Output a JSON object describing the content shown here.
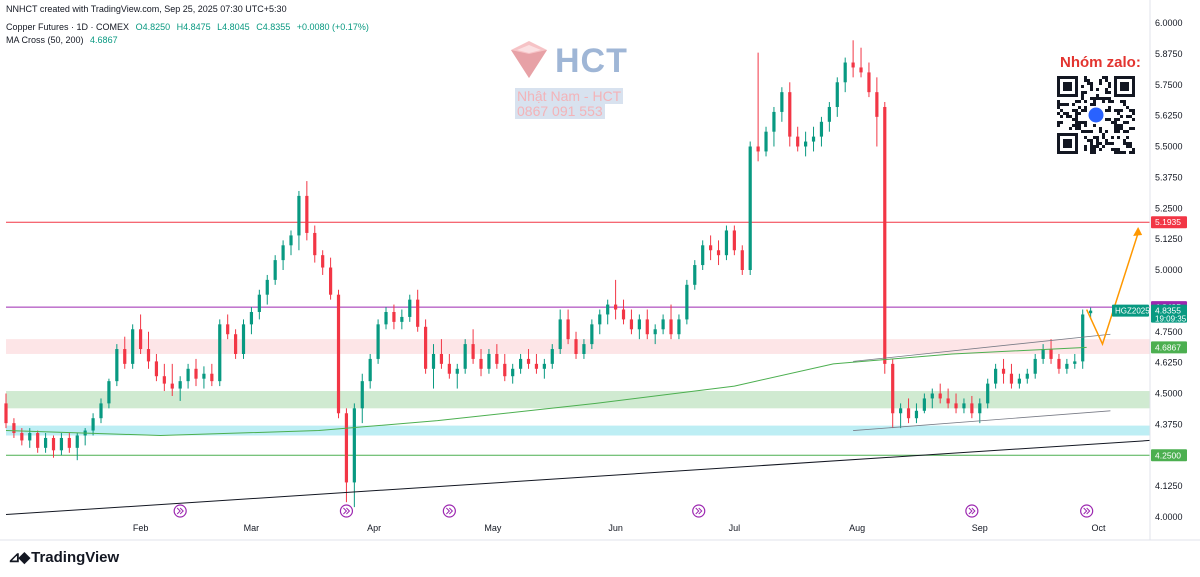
{
  "header": {
    "created_line": "NNHCT created with TradingView.com, Sep 25, 2025 07:30 UTC+5:30",
    "symbol": "Copper Futures · 1D · COMEX",
    "open": "O4.8250",
    "high": "H4.8475",
    "low": "L4.8045",
    "close": "C4.8355",
    "change": "+0.0080 (+0.17%)",
    "indicator_name": "MA Cross (50, 200)",
    "indicator_value": "4.6867"
  },
  "watermark": {
    "brand": "HCT",
    "name": "Nhật Nam - HCT",
    "phone": "0867 091 553",
    "zalo_label": "Nhóm zalo:"
  },
  "footer": {
    "brand": "TradingView"
  },
  "colors": {
    "up": "#089981",
    "down": "#f23645",
    "ma50": "#2962ff",
    "ma200": "#4caf50",
    "resistance": "#f23645",
    "purple": "#9c27b0",
    "green_zone": "#c8e6c9",
    "pink_zone": "#fde0e3",
    "cyan_zone": "#b2ebf2",
    "projection": "#ff9800"
  },
  "chart_data": {
    "type": "candlestick",
    "symbol": "HGZ2025",
    "ylim": [
      4.0,
      6.0
    ],
    "y_ticks": [
      "6.0000",
      "5.8750",
      "5.7500",
      "5.6250",
      "5.5000",
      "5.3750",
      "5.2500",
      "5.1250",
      "5.0000",
      "4.7500",
      "4.6250",
      "4.5000",
      "4.3750",
      "4.1250",
      "4.0000"
    ],
    "x_ticks": [
      {
        "label": "Feb",
        "day": 35
      },
      {
        "label": "Mar",
        "day": 63
      },
      {
        "label": "Apr",
        "day": 94
      },
      {
        "label": "May",
        "day": 124
      },
      {
        "label": "Jun",
        "day": 155
      },
      {
        "label": "Jul",
        "day": 185
      },
      {
        "label": "Aug",
        "day": 216
      },
      {
        "label": "Sep",
        "day": 247
      },
      {
        "label": "Oct",
        "day": 277
      }
    ],
    "price_labels": [
      {
        "text": "5.1935",
        "value": 5.1935,
        "color": "#f23645"
      },
      {
        "text": "4.8495",
        "value": 4.8495,
        "color": "#9c27b0"
      },
      {
        "text": "4.8355",
        "value": 4.8355,
        "color": "#089981",
        "sub": "19:09:35",
        "tag": "HGZ2025"
      },
      {
        "text": "4.6867",
        "value": 4.6867,
        "color": "#4caf50"
      },
      {
        "text": "4.2500",
        "value": 4.25,
        "color": "#4caf50"
      }
    ],
    "hlines": [
      {
        "value": 5.1935,
        "color": "#f23645"
      },
      {
        "value": 4.8495,
        "color": "#9c27b0"
      },
      {
        "value": 4.25,
        "color": "#4caf50"
      }
    ],
    "zones": [
      {
        "from": 4.44,
        "to": 4.51,
        "color": "#c8e6c9"
      },
      {
        "from": 4.66,
        "to": 4.72,
        "color": "#fde0e3"
      },
      {
        "from": 4.33,
        "to": 4.37,
        "color": "#b2ebf2"
      }
    ],
    "trendline": {
      "start": {
        "day": 1,
        "value": 4.01
      },
      "end": {
        "day": 290,
        "value": 4.31
      }
    },
    "channel_upper": {
      "start": {
        "day": 215,
        "value": 4.63
      },
      "end": {
        "day": 280,
        "value": 4.74
      }
    },
    "channel_lower": {
      "start": {
        "day": 215,
        "value": 4.35
      },
      "end": {
        "day": 280,
        "value": 4.43
      }
    },
    "projection": [
      {
        "day": 274,
        "value": 4.84
      },
      {
        "day": 278,
        "value": 4.7
      },
      {
        "day": 287,
        "value": 5.15
      }
    ],
    "ma200": [
      {
        "day": 1,
        "value": 4.35
      },
      {
        "day": 40,
        "value": 4.33
      },
      {
        "day": 80,
        "value": 4.35
      },
      {
        "day": 110,
        "value": 4.39
      },
      {
        "day": 150,
        "value": 4.46
      },
      {
        "day": 185,
        "value": 4.53
      },
      {
        "day": 210,
        "value": 4.62
      },
      {
        "day": 240,
        "value": 4.66
      },
      {
        "day": 274,
        "value": 4.6867
      }
    ],
    "events_days": [
      45,
      87,
      113,
      176,
      245,
      274
    ],
    "candles": [
      {
        "day": 1,
        "o": 4.46,
        "h": 4.5,
        "l": 4.36,
        "c": 4.38
      },
      {
        "day": 3,
        "o": 4.38,
        "h": 4.4,
        "l": 4.32,
        "c": 4.34
      },
      {
        "day": 5,
        "o": 4.34,
        "h": 4.36,
        "l": 4.29,
        "c": 4.31
      },
      {
        "day": 7,
        "o": 4.31,
        "h": 4.36,
        "l": 4.28,
        "c": 4.34
      },
      {
        "day": 9,
        "o": 4.34,
        "h": 4.35,
        "l": 4.26,
        "c": 4.28
      },
      {
        "day": 11,
        "o": 4.28,
        "h": 4.34,
        "l": 4.26,
        "c": 4.32
      },
      {
        "day": 13,
        "o": 4.32,
        "h": 4.33,
        "l": 4.24,
        "c": 4.27
      },
      {
        "day": 15,
        "o": 4.27,
        "h": 4.34,
        "l": 4.25,
        "c": 4.32
      },
      {
        "day": 17,
        "o": 4.32,
        "h": 4.34,
        "l": 4.26,
        "c": 4.28
      },
      {
        "day": 19,
        "o": 4.28,
        "h": 4.34,
        "l": 4.23,
        "c": 4.33
      },
      {
        "day": 21,
        "o": 4.33,
        "h": 4.36,
        "l": 4.29,
        "c": 4.35
      },
      {
        "day": 23,
        "o": 4.35,
        "h": 4.42,
        "l": 4.33,
        "c": 4.4
      },
      {
        "day": 25,
        "o": 4.4,
        "h": 4.48,
        "l": 4.38,
        "c": 4.46
      },
      {
        "day": 27,
        "o": 4.46,
        "h": 4.56,
        "l": 4.44,
        "c": 4.55
      },
      {
        "day": 29,
        "o": 4.55,
        "h": 4.7,
        "l": 4.53,
        "c": 4.68
      },
      {
        "day": 31,
        "o": 4.68,
        "h": 4.73,
        "l": 4.6,
        "c": 4.62
      },
      {
        "day": 33,
        "o": 4.62,
        "h": 4.78,
        "l": 4.6,
        "c": 4.76
      },
      {
        "day": 35,
        "o": 4.76,
        "h": 4.82,
        "l": 4.66,
        "c": 4.68
      },
      {
        "day": 37,
        "o": 4.68,
        "h": 4.75,
        "l": 4.6,
        "c": 4.63
      },
      {
        "day": 39,
        "o": 4.63,
        "h": 4.66,
        "l": 4.55,
        "c": 4.57
      },
      {
        "day": 41,
        "o": 4.57,
        "h": 4.62,
        "l": 4.51,
        "c": 4.54
      },
      {
        "day": 43,
        "o": 4.54,
        "h": 4.62,
        "l": 4.49,
        "c": 4.52
      },
      {
        "day": 45,
        "o": 4.52,
        "h": 4.57,
        "l": 4.47,
        "c": 4.55
      },
      {
        "day": 47,
        "o": 4.55,
        "h": 4.62,
        "l": 4.52,
        "c": 4.6
      },
      {
        "day": 49,
        "o": 4.6,
        "h": 4.64,
        "l": 4.53,
        "c": 4.56
      },
      {
        "day": 51,
        "o": 4.56,
        "h": 4.61,
        "l": 4.52,
        "c": 4.58
      },
      {
        "day": 53,
        "o": 4.58,
        "h": 4.62,
        "l": 4.53,
        "c": 4.55
      },
      {
        "day": 55,
        "o": 4.55,
        "h": 4.8,
        "l": 4.53,
        "c": 4.78
      },
      {
        "day": 57,
        "o": 4.78,
        "h": 4.82,
        "l": 4.72,
        "c": 4.74
      },
      {
        "day": 59,
        "o": 4.74,
        "h": 4.76,
        "l": 4.64,
        "c": 4.66
      },
      {
        "day": 61,
        "o": 4.66,
        "h": 4.8,
        "l": 4.64,
        "c": 4.78
      },
      {
        "day": 63,
        "o": 4.78,
        "h": 4.85,
        "l": 4.74,
        "c": 4.83
      },
      {
        "day": 65,
        "o": 4.83,
        "h": 4.92,
        "l": 4.8,
        "c": 4.9
      },
      {
        "day": 67,
        "o": 4.9,
        "h": 4.98,
        "l": 4.86,
        "c": 4.96
      },
      {
        "day": 69,
        "o": 4.96,
        "h": 5.06,
        "l": 4.94,
        "c": 5.04
      },
      {
        "day": 71,
        "o": 5.04,
        "h": 5.12,
        "l": 5.0,
        "c": 5.1
      },
      {
        "day": 73,
        "o": 5.1,
        "h": 5.16,
        "l": 5.06,
        "c": 5.14
      },
      {
        "day": 75,
        "o": 5.14,
        "h": 5.32,
        "l": 5.08,
        "c": 5.3
      },
      {
        "day": 77,
        "o": 5.3,
        "h": 5.36,
        "l": 5.12,
        "c": 5.15
      },
      {
        "day": 79,
        "o": 5.15,
        "h": 5.18,
        "l": 5.03,
        "c": 5.06
      },
      {
        "day": 81,
        "o": 5.06,
        "h": 5.08,
        "l": 4.98,
        "c": 5.01
      },
      {
        "day": 83,
        "o": 5.01,
        "h": 5.05,
        "l": 4.88,
        "c": 4.9
      },
      {
        "day": 85,
        "o": 4.9,
        "h": 4.92,
        "l": 4.4,
        "c": 4.42
      },
      {
        "day": 87,
        "o": 4.42,
        "h": 4.44,
        "l": 4.06,
        "c": 4.14
      },
      {
        "day": 89,
        "o": 4.14,
        "h": 4.46,
        "l": 4.04,
        "c": 4.44
      },
      {
        "day": 91,
        "o": 4.44,
        "h": 4.58,
        "l": 4.38,
        "c": 4.55
      },
      {
        "day": 93,
        "o": 4.55,
        "h": 4.66,
        "l": 4.52,
        "c": 4.64
      },
      {
        "day": 95,
        "o": 4.64,
        "h": 4.8,
        "l": 4.62,
        "c": 4.78
      },
      {
        "day": 97,
        "o": 4.78,
        "h": 4.85,
        "l": 4.76,
        "c": 4.83
      },
      {
        "day": 99,
        "o": 4.83,
        "h": 4.86,
        "l": 4.76,
        "c": 4.79
      },
      {
        "day": 101,
        "o": 4.79,
        "h": 4.84,
        "l": 4.76,
        "c": 4.81
      },
      {
        "day": 103,
        "o": 4.81,
        "h": 4.9,
        "l": 4.79,
        "c": 4.88
      },
      {
        "day": 105,
        "o": 4.88,
        "h": 4.92,
        "l": 4.75,
        "c": 4.77
      },
      {
        "day": 107,
        "o": 4.77,
        "h": 4.8,
        "l": 4.58,
        "c": 4.6
      },
      {
        "day": 109,
        "o": 4.6,
        "h": 4.7,
        "l": 4.52,
        "c": 4.66
      },
      {
        "day": 111,
        "o": 4.66,
        "h": 4.72,
        "l": 4.6,
        "c": 4.62
      },
      {
        "day": 113,
        "o": 4.62,
        "h": 4.66,
        "l": 4.56,
        "c": 4.58
      },
      {
        "day": 115,
        "o": 4.58,
        "h": 4.62,
        "l": 4.52,
        "c": 4.6
      },
      {
        "day": 117,
        "o": 4.6,
        "h": 4.72,
        "l": 4.58,
        "c": 4.7
      },
      {
        "day": 119,
        "o": 4.7,
        "h": 4.76,
        "l": 4.62,
        "c": 4.64
      },
      {
        "day": 121,
        "o": 4.64,
        "h": 4.68,
        "l": 4.57,
        "c": 4.6
      },
      {
        "day": 123,
        "o": 4.6,
        "h": 4.68,
        "l": 4.58,
        "c": 4.66
      },
      {
        "day": 125,
        "o": 4.66,
        "h": 4.7,
        "l": 4.6,
        "c": 4.62
      },
      {
        "day": 127,
        "o": 4.62,
        "h": 4.66,
        "l": 4.55,
        "c": 4.57
      },
      {
        "day": 129,
        "o": 4.57,
        "h": 4.62,
        "l": 4.54,
        "c": 4.6
      },
      {
        "day": 131,
        "o": 4.6,
        "h": 4.66,
        "l": 4.58,
        "c": 4.64
      },
      {
        "day": 133,
        "o": 4.64,
        "h": 4.68,
        "l": 4.6,
        "c": 4.62
      },
      {
        "day": 135,
        "o": 4.62,
        "h": 4.66,
        "l": 4.58,
        "c": 4.6
      },
      {
        "day": 137,
        "o": 4.6,
        "h": 4.64,
        "l": 4.56,
        "c": 4.62
      },
      {
        "day": 139,
        "o": 4.62,
        "h": 4.7,
        "l": 4.6,
        "c": 4.68
      },
      {
        "day": 141,
        "o": 4.68,
        "h": 4.84,
        "l": 4.66,
        "c": 4.8
      },
      {
        "day": 143,
        "o": 4.8,
        "h": 4.84,
        "l": 4.7,
        "c": 4.72
      },
      {
        "day": 145,
        "o": 4.72,
        "h": 4.75,
        "l": 4.64,
        "c": 4.66
      },
      {
        "day": 147,
        "o": 4.66,
        "h": 4.72,
        "l": 4.64,
        "c": 4.7
      },
      {
        "day": 149,
        "o": 4.7,
        "h": 4.8,
        "l": 4.68,
        "c": 4.78
      },
      {
        "day": 151,
        "o": 4.78,
        "h": 4.84,
        "l": 4.74,
        "c": 4.82
      },
      {
        "day": 153,
        "o": 4.82,
        "h": 4.88,
        "l": 4.78,
        "c": 4.86
      },
      {
        "day": 155,
        "o": 4.86,
        "h": 4.96,
        "l": 4.8,
        "c": 4.84
      },
      {
        "day": 157,
        "o": 4.84,
        "h": 4.88,
        "l": 4.78,
        "c": 4.8
      },
      {
        "day": 159,
        "o": 4.8,
        "h": 4.84,
        "l": 4.74,
        "c": 4.76
      },
      {
        "day": 161,
        "o": 4.76,
        "h": 4.82,
        "l": 4.72,
        "c": 4.8
      },
      {
        "day": 163,
        "o": 4.8,
        "h": 4.84,
        "l": 4.72,
        "c": 4.74
      },
      {
        "day": 165,
        "o": 4.74,
        "h": 4.78,
        "l": 4.7,
        "c": 4.76
      },
      {
        "day": 167,
        "o": 4.76,
        "h": 4.82,
        "l": 4.74,
        "c": 4.8
      },
      {
        "day": 169,
        "o": 4.8,
        "h": 4.86,
        "l": 4.72,
        "c": 4.74
      },
      {
        "day": 171,
        "o": 4.74,
        "h": 4.82,
        "l": 4.72,
        "c": 4.8
      },
      {
        "day": 173,
        "o": 4.8,
        "h": 4.96,
        "l": 4.78,
        "c": 4.94
      },
      {
        "day": 175,
        "o": 4.94,
        "h": 5.04,
        "l": 4.92,
        "c": 5.02
      },
      {
        "day": 177,
        "o": 5.02,
        "h": 5.12,
        "l": 5.0,
        "c": 5.1
      },
      {
        "day": 179,
        "o": 5.1,
        "h": 5.14,
        "l": 5.04,
        "c": 5.08
      },
      {
        "day": 181,
        "o": 5.08,
        "h": 5.12,
        "l": 5.02,
        "c": 5.06
      },
      {
        "day": 183,
        "o": 5.06,
        "h": 5.18,
        "l": 5.04,
        "c": 5.16
      },
      {
        "day": 185,
        "o": 5.16,
        "h": 5.18,
        "l": 5.06,
        "c": 5.08
      },
      {
        "day": 187,
        "o": 5.08,
        "h": 5.1,
        "l": 4.98,
        "c": 5.0
      },
      {
        "day": 189,
        "o": 5.0,
        "h": 5.52,
        "l": 4.98,
        "c": 5.5
      },
      {
        "day": 191,
        "o": 5.5,
        "h": 5.88,
        "l": 5.44,
        "c": 5.48
      },
      {
        "day": 193,
        "o": 5.48,
        "h": 5.58,
        "l": 5.46,
        "c": 5.56
      },
      {
        "day": 195,
        "o": 5.56,
        "h": 5.66,
        "l": 5.5,
        "c": 5.64
      },
      {
        "day": 197,
        "o": 5.64,
        "h": 5.74,
        "l": 5.6,
        "c": 5.72
      },
      {
        "day": 199,
        "o": 5.72,
        "h": 5.76,
        "l": 5.5,
        "c": 5.54
      },
      {
        "day": 201,
        "o": 5.54,
        "h": 5.58,
        "l": 5.48,
        "c": 5.5
      },
      {
        "day": 203,
        "o": 5.5,
        "h": 5.56,
        "l": 5.46,
        "c": 5.52
      },
      {
        "day": 205,
        "o": 5.52,
        "h": 5.58,
        "l": 5.48,
        "c": 5.54
      },
      {
        "day": 207,
        "o": 5.54,
        "h": 5.62,
        "l": 5.5,
        "c": 5.6
      },
      {
        "day": 209,
        "o": 5.6,
        "h": 5.68,
        "l": 5.56,
        "c": 5.66
      },
      {
        "day": 211,
        "o": 5.66,
        "h": 5.78,
        "l": 5.62,
        "c": 5.76
      },
      {
        "day": 213,
        "o": 5.76,
        "h": 5.86,
        "l": 5.72,
        "c": 5.84
      },
      {
        "day": 215,
        "o": 5.84,
        "h": 5.93,
        "l": 5.78,
        "c": 5.82
      },
      {
        "day": 217,
        "o": 5.82,
        "h": 5.9,
        "l": 5.78,
        "c": 5.8
      },
      {
        "day": 219,
        "o": 5.8,
        "h": 5.84,
        "l": 5.7,
        "c": 5.72
      },
      {
        "day": 221,
        "o": 5.72,
        "h": 5.78,
        "l": 5.5,
        "c": 5.62
      },
      {
        "day": 223,
        "o": 5.66,
        "h": 5.68,
        "l": 4.58,
        "c": 4.62
      },
      {
        "day": 225,
        "o": 4.62,
        "h": 4.64,
        "l": 4.36,
        "c": 4.42
      },
      {
        "day": 227,
        "o": 4.42,
        "h": 4.46,
        "l": 4.36,
        "c": 4.44
      },
      {
        "day": 229,
        "o": 4.44,
        "h": 4.48,
        "l": 4.38,
        "c": 4.4
      },
      {
        "day": 231,
        "o": 4.4,
        "h": 4.46,
        "l": 4.38,
        "c": 4.43
      },
      {
        "day": 233,
        "o": 4.43,
        "h": 4.5,
        "l": 4.42,
        "c": 4.48
      },
      {
        "day": 235,
        "o": 4.48,
        "h": 4.52,
        "l": 4.44,
        "c": 4.5
      },
      {
        "day": 237,
        "o": 4.5,
        "h": 4.54,
        "l": 4.46,
        "c": 4.48
      },
      {
        "day": 239,
        "o": 4.48,
        "h": 4.52,
        "l": 4.44,
        "c": 4.46
      },
      {
        "day": 241,
        "o": 4.46,
        "h": 4.5,
        "l": 4.42,
        "c": 4.44
      },
      {
        "day": 243,
        "o": 4.44,
        "h": 4.48,
        "l": 4.42,
        "c": 4.46
      },
      {
        "day": 245,
        "o": 4.46,
        "h": 4.49,
        "l": 4.4,
        "c": 4.42
      },
      {
        "day": 247,
        "o": 4.42,
        "h": 4.48,
        "l": 4.38,
        "c": 4.46
      },
      {
        "day": 249,
        "o": 4.46,
        "h": 4.56,
        "l": 4.44,
        "c": 4.54
      },
      {
        "day": 251,
        "o": 4.54,
        "h": 4.62,
        "l": 4.52,
        "c": 4.6
      },
      {
        "day": 253,
        "o": 4.6,
        "h": 4.64,
        "l": 4.54,
        "c": 4.58
      },
      {
        "day": 255,
        "o": 4.58,
        "h": 4.62,
        "l": 4.52,
        "c": 4.54
      },
      {
        "day": 257,
        "o": 4.54,
        "h": 4.58,
        "l": 4.52,
        "c": 4.56
      },
      {
        "day": 259,
        "o": 4.56,
        "h": 4.6,
        "l": 4.54,
        "c": 4.58
      },
      {
        "day": 261,
        "o": 4.58,
        "h": 4.66,
        "l": 4.56,
        "c": 4.64
      },
      {
        "day": 263,
        "o": 4.64,
        "h": 4.7,
        "l": 4.62,
        "c": 4.68
      },
      {
        "day": 265,
        "o": 4.68,
        "h": 4.72,
        "l": 4.62,
        "c": 4.64
      },
      {
        "day": 267,
        "o": 4.64,
        "h": 4.66,
        "l": 4.58,
        "c": 4.6
      },
      {
        "day": 269,
        "o": 4.6,
        "h": 4.64,
        "l": 4.58,
        "c": 4.62
      },
      {
        "day": 271,
        "o": 4.62,
        "h": 4.66,
        "l": 4.6,
        "c": 4.63
      },
      {
        "day": 273,
        "o": 4.63,
        "h": 4.84,
        "l": 4.6,
        "c": 4.82
      },
      {
        "day": 275,
        "o": 4.825,
        "h": 4.8475,
        "l": 4.8045,
        "c": 4.8355
      }
    ]
  }
}
